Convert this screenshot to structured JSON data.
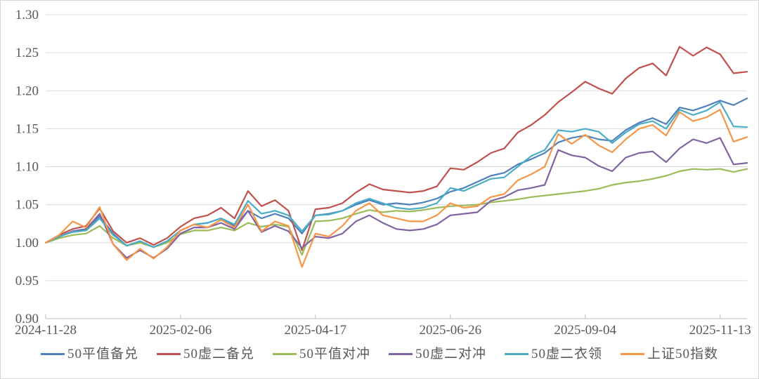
{
  "chart_data": {
    "type": "line",
    "title": "",
    "xlabel": "",
    "ylabel": "",
    "grid": true,
    "legend_position": "bottom",
    "background": "#ffffff",
    "gridline_color": "#d9d9d9",
    "axis_color": "#bfbfbf",
    "text_color": "#595959",
    "ylim": [
      0.9,
      1.3
    ],
    "y_ticks": [
      {
        "v": 1.3,
        "label": "1.30"
      },
      {
        "v": 1.25,
        "label": "1.25"
      },
      {
        "v": 1.2,
        "label": "1.20"
      },
      {
        "v": 1.15,
        "label": "1.15"
      },
      {
        "v": 1.1,
        "label": "1.10"
      },
      {
        "v": 1.05,
        "label": "1.05"
      },
      {
        "v": 1.0,
        "label": "1.00"
      },
      {
        "v": 0.95,
        "label": "0.95"
      },
      {
        "v": 0.9,
        "label": "0.90"
      }
    ],
    "x_range_days": [
      0,
      260
    ],
    "x_ticks": [
      {
        "day": 0,
        "label": "2024-11-28"
      },
      {
        "day": 50,
        "label": "2025-02-06"
      },
      {
        "day": 100,
        "label": "2025-04-17"
      },
      {
        "day": 150,
        "label": "2025-06-26"
      },
      {
        "day": 200,
        "label": "2025-09-04"
      },
      {
        "day": 250,
        "label": "2025-11-13"
      }
    ],
    "x_sample_step_days": 5,
    "series": [
      {
        "name": "50平值备兑",
        "color": "#4F81BD",
        "values": [
          1.0,
          1.008,
          1.015,
          1.018,
          1.035,
          1.012,
          0.996,
          1.002,
          0.994,
          1.002,
          1.016,
          1.024,
          1.026,
          1.032,
          1.022,
          1.042,
          1.032,
          1.038,
          1.032,
          1.012,
          1.036,
          1.038,
          1.042,
          1.05,
          1.056,
          1.05,
          1.052,
          1.05,
          1.053,
          1.058,
          1.067,
          1.072,
          1.08,
          1.088,
          1.092,
          1.103,
          1.11,
          1.118,
          1.132,
          1.138,
          1.141,
          1.136,
          1.134,
          1.148,
          1.158,
          1.164,
          1.156,
          1.178,
          1.174,
          1.18,
          1.187,
          1.181,
          1.19
        ]
      },
      {
        "name": "50虚二备兑",
        "color": "#C0504D",
        "values": [
          1.0,
          1.01,
          1.018,
          1.022,
          1.045,
          1.015,
          1.0,
          1.006,
          0.997,
          1.006,
          1.021,
          1.032,
          1.036,
          1.046,
          1.032,
          1.068,
          1.048,
          1.056,
          1.042,
          0.99,
          1.044,
          1.046,
          1.052,
          1.066,
          1.077,
          1.07,
          1.068,
          1.066,
          1.068,
          1.074,
          1.098,
          1.096,
          1.106,
          1.118,
          1.124,
          1.145,
          1.155,
          1.168,
          1.185,
          1.198,
          1.212,
          1.203,
          1.196,
          1.216,
          1.23,
          1.236,
          1.22,
          1.258,
          1.246,
          1.257,
          1.248,
          1.223,
          1.225
        ]
      },
      {
        "name": "50平值对冲",
        "color": "#9BBB59",
        "values": [
          1.0,
          1.006,
          1.01,
          1.012,
          1.022,
          1.006,
          0.996,
          1.0,
          0.994,
          1.0,
          1.011,
          1.016,
          1.016,
          1.02,
          1.016,
          1.026,
          1.021,
          1.024,
          1.021,
          0.984,
          1.028,
          1.029,
          1.032,
          1.038,
          1.043,
          1.04,
          1.042,
          1.041,
          1.043,
          1.046,
          1.048,
          1.049,
          1.05,
          1.053,
          1.055,
          1.057,
          1.06,
          1.062,
          1.064,
          1.066,
          1.068,
          1.071,
          1.076,
          1.079,
          1.081,
          1.084,
          1.088,
          1.094,
          1.097,
          1.096,
          1.097,
          1.093,
          1.097
        ]
      },
      {
        "name": "50虚二对冲",
        "color": "#8064A2",
        "values": [
          1.0,
          1.008,
          1.015,
          1.018,
          1.038,
          0.998,
          0.98,
          0.99,
          0.98,
          0.992,
          1.012,
          1.02,
          1.02,
          1.026,
          1.018,
          1.042,
          1.014,
          1.022,
          1.015,
          0.993,
          1.008,
          1.006,
          1.012,
          1.028,
          1.036,
          1.026,
          1.018,
          1.016,
          1.018,
          1.024,
          1.036,
          1.038,
          1.04,
          1.055,
          1.06,
          1.069,
          1.072,
          1.076,
          1.122,
          1.115,
          1.112,
          1.101,
          1.094,
          1.112,
          1.118,
          1.12,
          1.106,
          1.124,
          1.136,
          1.131,
          1.138,
          1.103,
          1.105
        ]
      },
      {
        "name": "50虚二衣领",
        "color": "#4BACC6",
        "values": [
          1.0,
          1.008,
          1.014,
          1.016,
          1.032,
          1.01,
          0.996,
          1.002,
          0.994,
          1.002,
          1.016,
          1.024,
          1.026,
          1.032,
          1.024,
          1.055,
          1.038,
          1.042,
          1.036,
          1.015,
          1.036,
          1.037,
          1.042,
          1.052,
          1.058,
          1.052,
          1.046,
          1.044,
          1.046,
          1.052,
          1.072,
          1.068,
          1.076,
          1.084,
          1.086,
          1.1,
          1.114,
          1.122,
          1.148,
          1.146,
          1.15,
          1.146,
          1.131,
          1.145,
          1.156,
          1.16,
          1.15,
          1.175,
          1.168,
          1.174,
          1.185,
          1.153,
          1.152
        ]
      },
      {
        "name": "上证50指数",
        "color": "#F79646",
        "values": [
          1.0,
          1.01,
          1.028,
          1.02,
          1.047,
          0.998,
          0.977,
          0.992,
          0.979,
          0.994,
          1.016,
          1.024,
          1.02,
          1.03,
          1.02,
          1.05,
          1.015,
          1.028,
          1.022,
          0.968,
          1.012,
          1.008,
          1.022,
          1.042,
          1.052,
          1.036,
          1.032,
          1.028,
          1.028,
          1.036,
          1.052,
          1.046,
          1.048,
          1.06,
          1.064,
          1.082,
          1.09,
          1.1,
          1.143,
          1.13,
          1.142,
          1.128,
          1.119,
          1.136,
          1.15,
          1.155,
          1.141,
          1.172,
          1.16,
          1.165,
          1.175,
          1.133,
          1.139
        ]
      }
    ]
  }
}
